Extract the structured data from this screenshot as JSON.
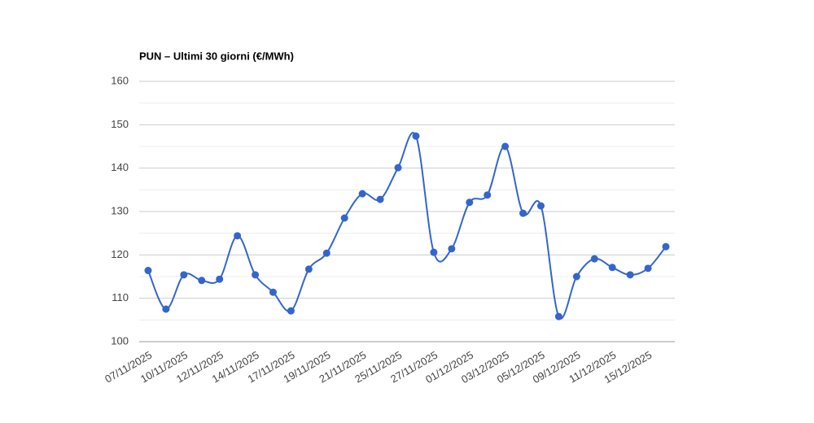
{
  "chart_data": {
    "type": "line",
    "title": "PUN – Ultimi 30 giorni (€/MWh)",
    "categories": [
      "07/11/2025",
      null,
      "10/11/2025",
      null,
      "12/11/2025",
      null,
      "14/11/2025",
      null,
      "17/11/2025",
      null,
      "19/11/2025",
      null,
      "21/11/2025",
      null,
      "25/11/2025",
      null,
      "27/11/2025",
      null,
      "01/12/2025",
      null,
      "03/12/2025",
      null,
      "05/12/2025",
      null,
      "09/12/2025",
      null,
      "11/12/2025",
      null,
      "15/12/2025",
      null
    ],
    "series": [
      {
        "name": "PUN",
        "color": "#3366cc",
        "values": [
          116.4,
          107.5,
          115.4,
          114.1,
          114.4,
          124.4,
          115.4,
          111.4,
          107.1,
          116.7,
          120.4,
          128.5,
          134.1,
          132.8,
          140.1,
          147.4,
          120.6,
          121.4,
          132.1,
          133.8,
          145.0,
          129.6,
          131.3,
          105.8,
          115.0,
          119.1,
          117.1,
          115.4,
          116.9,
          121.9
        ]
      }
    ],
    "ylim": [
      100,
      160
    ],
    "yticks": [
      100,
      110,
      120,
      130,
      140,
      150,
      160
    ],
    "grid": true,
    "smooth": true
  }
}
